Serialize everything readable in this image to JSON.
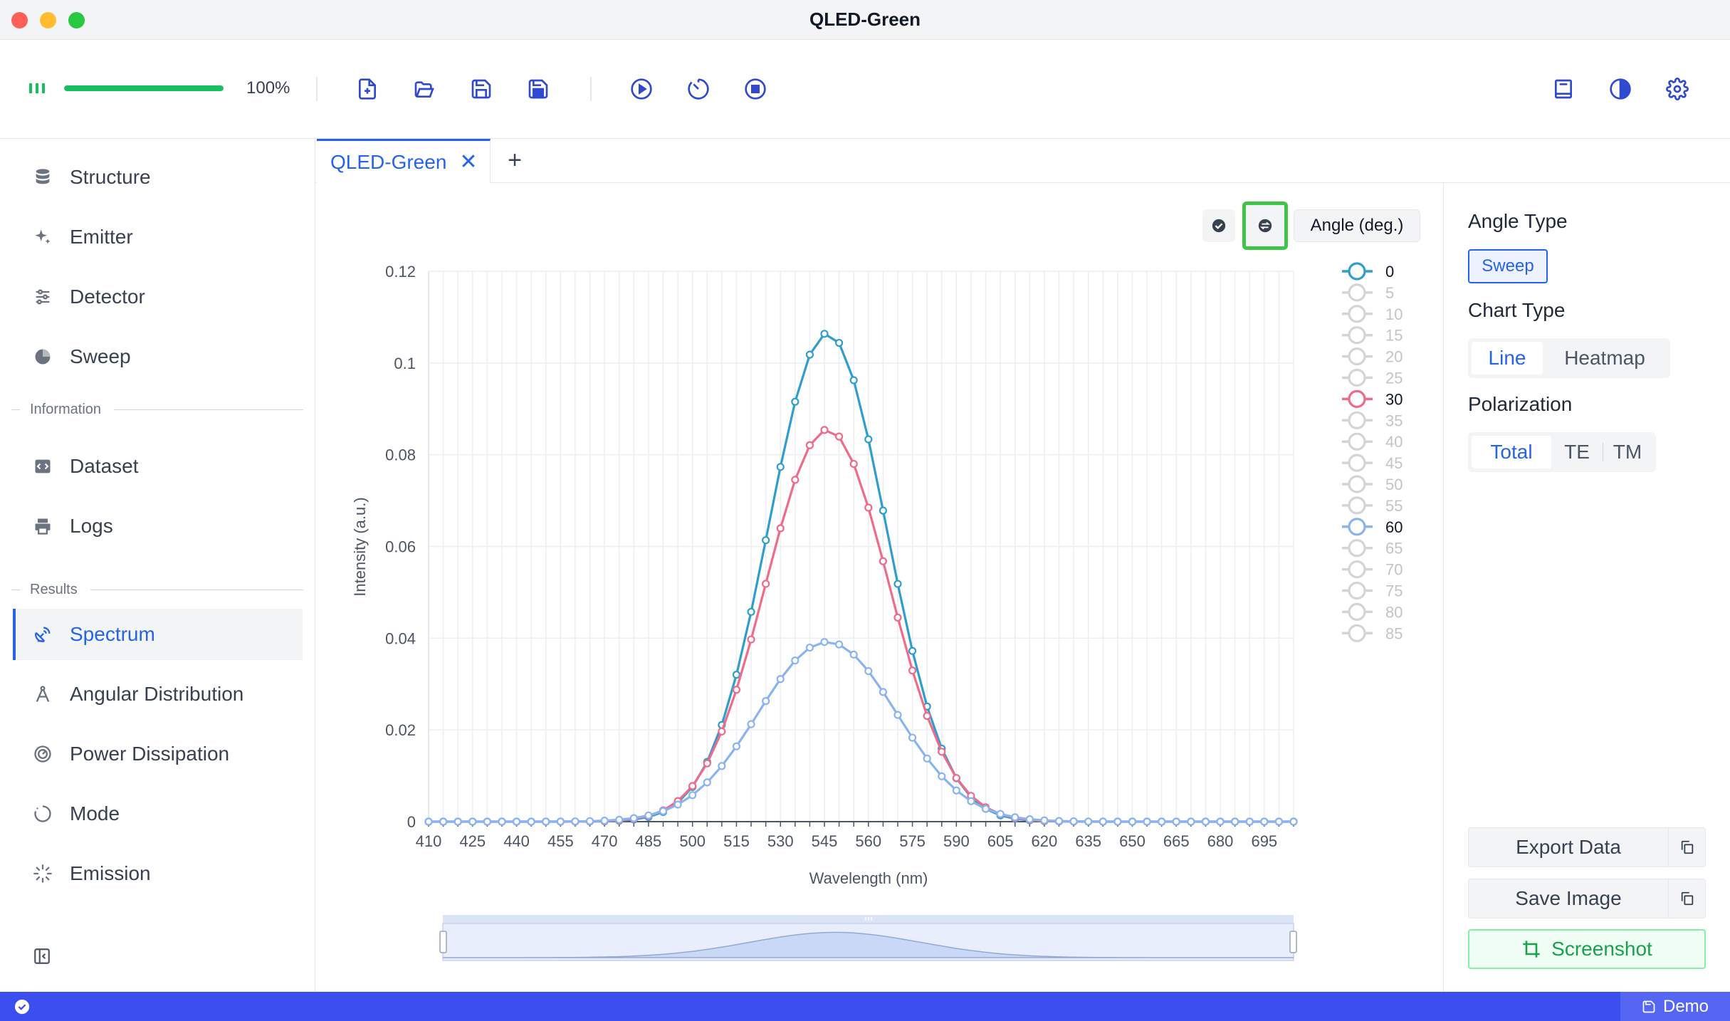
{
  "window": {
    "title": "QLED-Green"
  },
  "toolbar": {
    "progress_percent": 100,
    "progress_text": "100%",
    "colors": {
      "progress": "#16c060",
      "icon": "#2f49d1",
      "status_ok": "#16a34a"
    },
    "buttons": [
      "new-file-icon",
      "open-folder-icon",
      "save-icon",
      "save-as-icon",
      "run-icon",
      "timer-icon",
      "stop-icon"
    ],
    "right_buttons": [
      "book-icon",
      "theme-icon",
      "settings-icon"
    ]
  },
  "sidebar": {
    "group1": [
      "Structure",
      "Emitter",
      "Detector",
      "Sweep"
    ],
    "section_information": "Information",
    "group2": [
      "Dataset",
      "Logs"
    ],
    "section_results": "Results",
    "group3": [
      "Spectrum",
      "Angular Distribution",
      "Power Dissipation",
      "Mode",
      "Emission"
    ],
    "active": "Spectrum"
  },
  "tabs": {
    "active_label": "QLED-Green",
    "close_glyph": "✕",
    "add_glyph": "+"
  },
  "chart_controls": {
    "legend_title": "Angle (deg.)"
  },
  "settings": {
    "angle_type_label": "Angle Type",
    "angle_type_value": "Sweep",
    "chart_type_label": "Chart Type",
    "chart_type_options": [
      "Line",
      "Heatmap"
    ],
    "chart_type_selected": "Line",
    "polarization_label": "Polarization",
    "polarization_options": [
      "Total",
      "TE",
      "TM"
    ],
    "polarization_selected": "Total",
    "export_data": "Export Data",
    "save_image": "Save Image",
    "screenshot": "Screenshot"
  },
  "status": {
    "mode": "Demo"
  },
  "chart_data": {
    "type": "line",
    "xlabel": "Wavelength (nm)",
    "ylabel": "Intensity (a.u.)",
    "xlim": [
      410,
      705
    ],
    "ylim": [
      0,
      0.12
    ],
    "x_ticks": [
      410,
      425,
      440,
      455,
      470,
      485,
      500,
      515,
      530,
      545,
      560,
      575,
      590,
      605,
      620,
      635,
      650,
      665,
      680,
      695
    ],
    "y_ticks": [
      "0",
      "0.02",
      "0.04",
      "0.06",
      "0.08",
      "0.1",
      "0.12"
    ],
    "y_tick_values": [
      0,
      0.02,
      0.04,
      0.06,
      0.08,
      0.1,
      0.12
    ],
    "grid": true,
    "legend_position": "right",
    "legend_entries": [
      "0",
      "5",
      "10",
      "15",
      "20",
      "25",
      "30",
      "35",
      "40",
      "45",
      "50",
      "55",
      "60",
      "65",
      "70",
      "75",
      "80",
      "85"
    ],
    "legend_active": {
      "0": "#2f9ecd",
      "30": "#ef6b8a",
      "60": "#8ab4f0"
    },
    "legend_inactive_color": "#d4d4d8",
    "series": [
      {
        "name": "0",
        "color": "#2f9ecd",
        "peak_x": 546,
        "peak_y": 0.1065,
        "sigma": 20
      },
      {
        "name": "30",
        "color": "#ef6b8a",
        "peak_x": 546,
        "peak_y": 0.0855,
        "sigma": 21
      },
      {
        "name": "60",
        "color": "#8ab4f0",
        "peak_x": 546,
        "peak_y": 0.0392,
        "sigma": 23.5
      }
    ],
    "x_step": 5
  }
}
